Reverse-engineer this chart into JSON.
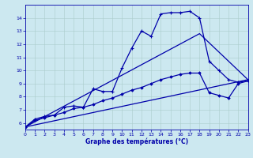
{
  "bg_color": "#cce8f0",
  "line_color": "#0000aa",
  "grid_color": "#aacccc",
  "xlabel": "Graphe des températures (°C)",
  "xlim": [
    0,
    23
  ],
  "ylim": [
    5.5,
    15.0
  ],
  "xticks": [
    0,
    1,
    2,
    3,
    4,
    5,
    6,
    7,
    8,
    9,
    10,
    11,
    12,
    13,
    14,
    15,
    16,
    17,
    18,
    19,
    20,
    21,
    22,
    23
  ],
  "yticks": [
    6,
    7,
    8,
    9,
    10,
    11,
    12,
    13,
    14
  ],
  "curve1_x": [
    0,
    1,
    2,
    3,
    4,
    5,
    6,
    7,
    8,
    9,
    10,
    11,
    12,
    13,
    14,
    15,
    16,
    17,
    18,
    19,
    20,
    21,
    22,
    23
  ],
  "curve1_y": [
    5.7,
    6.3,
    6.5,
    6.6,
    7.2,
    7.3,
    7.2,
    8.6,
    8.4,
    8.4,
    10.2,
    11.7,
    13.0,
    12.6,
    14.3,
    14.4,
    14.4,
    14.5,
    14.0,
    10.7,
    10.0,
    9.3,
    9.1,
    9.2
  ],
  "curve2_x": [
    0,
    1,
    2,
    3,
    4,
    5,
    6,
    7,
    8,
    9,
    10,
    11,
    12,
    13,
    14,
    15,
    16,
    17,
    18,
    19,
    20,
    21,
    22,
    23
  ],
  "curve2_y": [
    5.7,
    6.2,
    6.4,
    6.6,
    6.8,
    7.1,
    7.2,
    7.4,
    7.7,
    7.9,
    8.2,
    8.5,
    8.7,
    9.0,
    9.3,
    9.5,
    9.7,
    9.8,
    9.8,
    8.3,
    8.1,
    7.9,
    9.0,
    9.2
  ],
  "line3_x": [
    0,
    18,
    23
  ],
  "line3_y": [
    5.7,
    12.8,
    9.3
  ],
  "line4_x": [
    0,
    23
  ],
  "line4_y": [
    5.7,
    9.3
  ]
}
